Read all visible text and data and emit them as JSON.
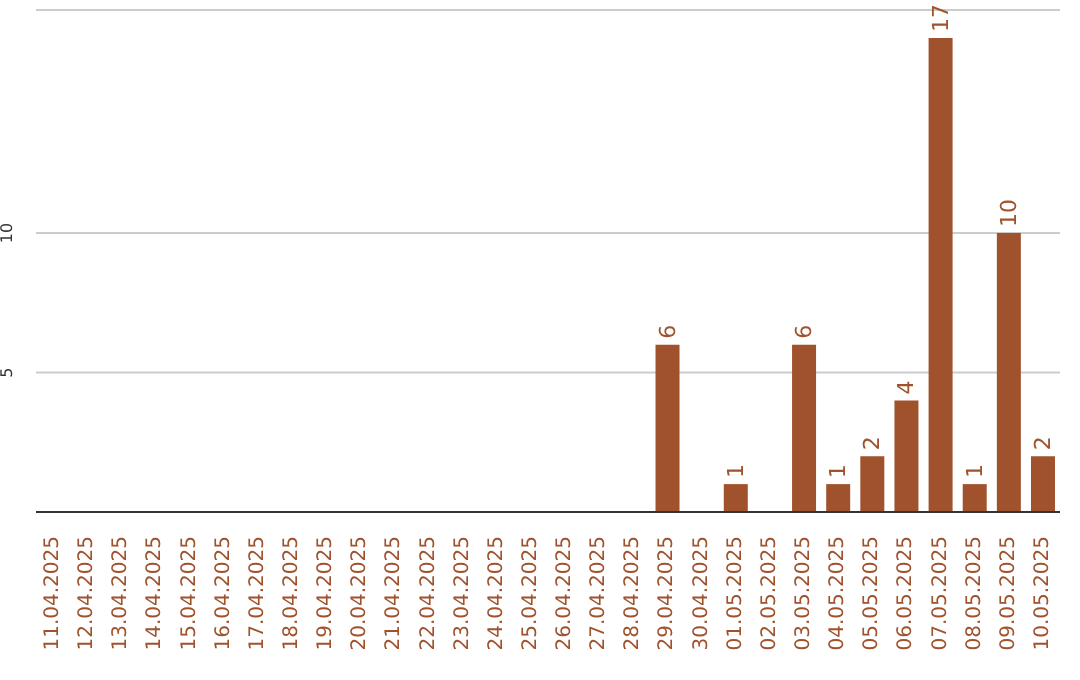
{
  "chart_data": {
    "type": "bar",
    "categories": [
      "11.04.2025",
      "12.04.2025",
      "13.04.2025",
      "14.04.2025",
      "15.04.2025",
      "16.04.2025",
      "17.04.2025",
      "18.04.2025",
      "19.04.2025",
      "20.04.2025",
      "21.04.2025",
      "22.04.2025",
      "23.04.2025",
      "24.04.2025",
      "25.04.2025",
      "26.04.2025",
      "27.04.2025",
      "28.04.2025",
      "29.04.2025",
      "30.04.2025",
      "01.05.2025",
      "02.05.2025",
      "03.05.2025",
      "04.05.2025",
      "05.05.2025",
      "06.05.2025",
      "07.05.2025",
      "08.05.2025",
      "09.05.2025",
      "10.05.2025"
    ],
    "values": [
      0,
      0,
      0,
      0,
      0,
      0,
      0,
      0,
      0,
      0,
      0,
      0,
      0,
      0,
      0,
      0,
      0,
      0,
      6,
      0,
      1,
      0,
      6,
      1,
      2,
      4,
      17,
      1,
      10,
      2
    ],
    "value_labels": [
      null,
      null,
      null,
      null,
      null,
      null,
      null,
      null,
      null,
      null,
      null,
      null,
      null,
      null,
      null,
      null,
      null,
      null,
      "6",
      null,
      "1",
      null,
      "6",
      "1",
      "2",
      "4",
      "17",
      "1",
      "10",
      "2"
    ],
    "color": "#a0522d",
    "ylim": [
      0,
      18
    ],
    "yticks": [
      5,
      10
    ],
    "grid": "y"
  }
}
